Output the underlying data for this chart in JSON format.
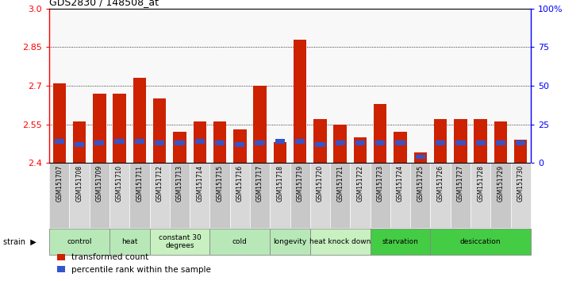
{
  "title": "GDS2830 / 148508_at",
  "samples": [
    "GSM151707",
    "GSM151708",
    "GSM151709",
    "GSM151710",
    "GSM151711",
    "GSM151712",
    "GSM151713",
    "GSM151714",
    "GSM151715",
    "GSM151716",
    "GSM151717",
    "GSM151718",
    "GSM151719",
    "GSM151720",
    "GSM151721",
    "GSM151722",
    "GSM151723",
    "GSM151724",
    "GSM151725",
    "GSM151726",
    "GSM151727",
    "GSM151728",
    "GSM151729",
    "GSM151730"
  ],
  "red_values": [
    2.71,
    2.56,
    2.67,
    2.67,
    2.73,
    2.65,
    2.52,
    2.56,
    2.56,
    2.53,
    2.7,
    2.48,
    2.88,
    2.57,
    2.55,
    2.5,
    2.63,
    2.52,
    2.44,
    2.57,
    2.57,
    2.57,
    2.56,
    2.49
  ],
  "blue_values": [
    14,
    12,
    13,
    14,
    14,
    13,
    13,
    14,
    13,
    12,
    13,
    14,
    14,
    12,
    13,
    13,
    13,
    13,
    4,
    13,
    13,
    13,
    13,
    13
  ],
  "groups": [
    {
      "label": "control",
      "start": 0,
      "end": 3,
      "color": "#b8e8b8"
    },
    {
      "label": "heat",
      "start": 3,
      "end": 5,
      "color": "#b8e8b8"
    },
    {
      "label": "constant 30\ndegrees",
      "start": 5,
      "end": 8,
      "color": "#c8f0c0"
    },
    {
      "label": "cold",
      "start": 8,
      "end": 11,
      "color": "#b8e8b8"
    },
    {
      "label": "longevity",
      "start": 11,
      "end": 13,
      "color": "#b8e8b8"
    },
    {
      "label": "heat knock down",
      "start": 13,
      "end": 16,
      "color": "#c8f0c0"
    },
    {
      "label": "starvation",
      "start": 16,
      "end": 19,
      "color": "#44cc44"
    },
    {
      "label": "desiccation",
      "start": 19,
      "end": 24,
      "color": "#44cc44"
    }
  ],
  "ylim_left": [
    2.4,
    3.0
  ],
  "ylim_right": [
    0,
    100
  ],
  "yticks_left": [
    2.4,
    2.55,
    2.7,
    2.85,
    3.0
  ],
  "yticks_right": [
    0,
    25,
    50,
    75,
    100
  ],
  "bar_color": "#cc2200",
  "blue_color": "#3355cc",
  "base_value": 2.4,
  "chart_bg": "#f8f8f8",
  "label_bg_even": "#c8c8c8",
  "label_bg_odd": "#d8d8d8",
  "group_border": "#888888"
}
